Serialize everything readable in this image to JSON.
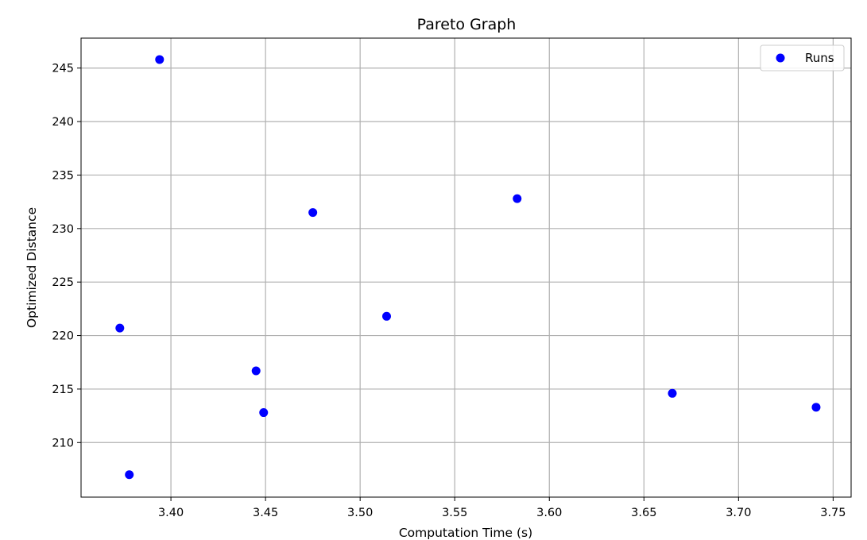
{
  "chart_data": {
    "type": "scatter",
    "title": "Pareto Graph",
    "xlabel": "Computation Time (s)",
    "ylabel": "Optimized Distance",
    "xlim": [
      3.3525,
      3.7595
    ],
    "ylim": [
      204.9,
      247.8
    ],
    "xticks": [
      3.4,
      3.45,
      3.5,
      3.55,
      3.6,
      3.65,
      3.7,
      3.75
    ],
    "xtick_labels": [
      "3.40",
      "3.45",
      "3.50",
      "3.55",
      "3.60",
      "3.65",
      "3.70",
      "3.75"
    ],
    "yticks": [
      210,
      215,
      220,
      225,
      230,
      235,
      240,
      245
    ],
    "ytick_labels": [
      "210",
      "215",
      "220",
      "225",
      "230",
      "235",
      "240",
      "245"
    ],
    "grid": true,
    "legend": {
      "position": "top-right",
      "entries": [
        "Runs"
      ]
    },
    "series": [
      {
        "name": "Runs",
        "color": "#0000ff",
        "points": [
          {
            "x": 3.394,
            "y": 245.8
          },
          {
            "x": 3.373,
            "y": 220.7
          },
          {
            "x": 3.378,
            "y": 207.0
          },
          {
            "x": 3.445,
            "y": 216.7
          },
          {
            "x": 3.449,
            "y": 212.8
          },
          {
            "x": 3.475,
            "y": 231.5
          },
          {
            "x": 3.514,
            "y": 221.8
          },
          {
            "x": 3.583,
            "y": 232.8
          },
          {
            "x": 3.665,
            "y": 214.6
          },
          {
            "x": 3.741,
            "y": 213.3
          }
        ]
      }
    ]
  }
}
